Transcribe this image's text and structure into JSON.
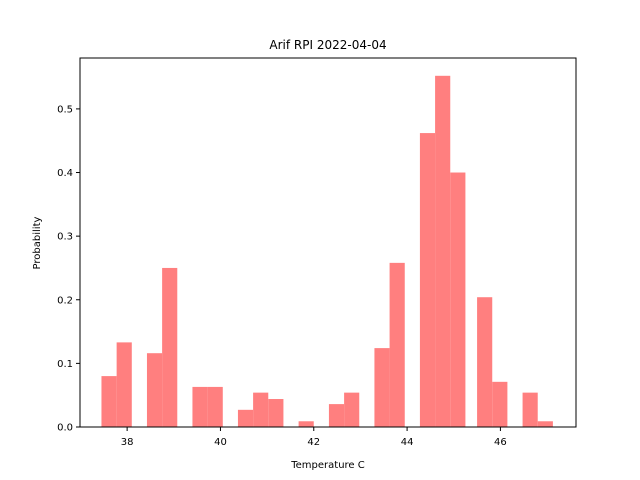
{
  "chart_data": {
    "type": "bar",
    "title": "Arif RPI 2022-04-04",
    "xlabel": "Temperature C",
    "ylabel": "Probability",
    "xlim": [
      36.99,
      47.62
    ],
    "ylim": [
      0.0,
      0.58
    ],
    "xticks": [
      38,
      40,
      42,
      44,
      46
    ],
    "yticks": [
      0.0,
      0.1,
      0.2,
      0.3,
      0.4,
      0.5
    ],
    "bar_color": "#ff7f7f",
    "bin_width": 0.325,
    "bins": [
      {
        "x0": 37.45,
        "value": 0.08
      },
      {
        "x0": 37.775,
        "value": 0.133
      },
      {
        "x0": 38.425,
        "value": 0.116
      },
      {
        "x0": 38.75,
        "value": 0.25
      },
      {
        "x0": 39.4,
        "value": 0.063
      },
      {
        "x0": 39.725,
        "value": 0.063
      },
      {
        "x0": 40.375,
        "value": 0.027
      },
      {
        "x0": 40.7,
        "value": 0.054
      },
      {
        "x0": 41.025,
        "value": 0.044
      },
      {
        "x0": 41.675,
        "value": 0.009
      },
      {
        "x0": 42.325,
        "value": 0.036
      },
      {
        "x0": 42.65,
        "value": 0.054
      },
      {
        "x0": 43.3,
        "value": 0.124
      },
      {
        "x0": 43.625,
        "value": 0.258
      },
      {
        "x0": 44.275,
        "value": 0.462
      },
      {
        "x0": 44.6,
        "value": 0.552
      },
      {
        "x0": 44.925,
        "value": 0.4
      },
      {
        "x0": 45.5,
        "value": 0.204
      },
      {
        "x0": 45.825,
        "value": 0.071
      },
      {
        "x0": 46.475,
        "value": 0.054
      },
      {
        "x0": 46.8,
        "value": 0.009
      }
    ]
  }
}
